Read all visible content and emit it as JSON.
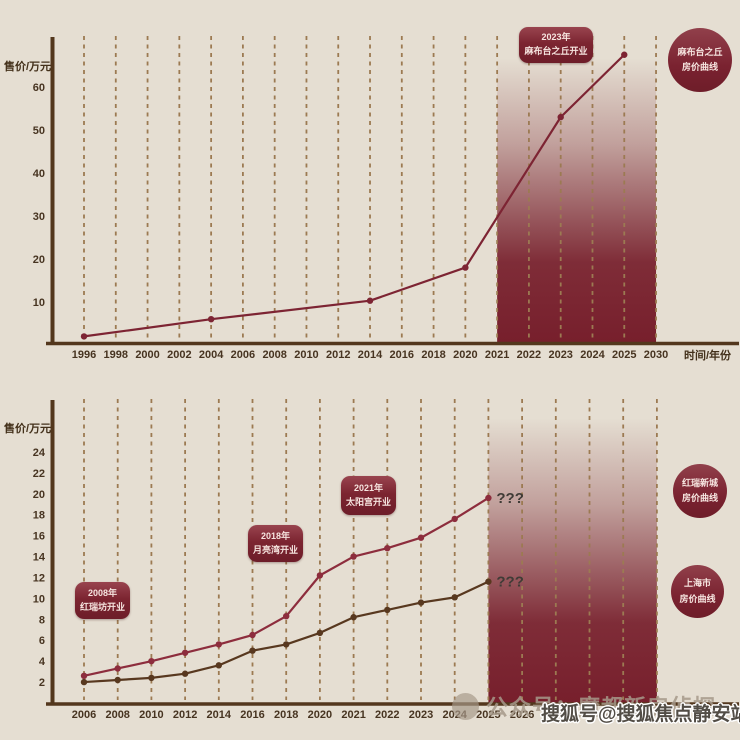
{
  "background": "#e5ded2",
  "chart_data": [
    {
      "type": "line",
      "title": "",
      "ylabel": "售价/万元",
      "xlabel": "时间/年份",
      "x_ticks": [
        "1996",
        "1998",
        "2000",
        "2002",
        "2004",
        "2006",
        "2008",
        "2010",
        "2012",
        "2014",
        "2016",
        "2018",
        "2020",
        "2021",
        "2022",
        "2023",
        "2024",
        "2025",
        "2030"
      ],
      "y_ticks": [
        10,
        20,
        30,
        40,
        50,
        60
      ],
      "ylim": [
        0,
        70
      ],
      "grid": "vertical-dashed",
      "legend_position": "right",
      "highlight_region": {
        "from": "2021",
        "to": "2030"
      },
      "series": [
        {
          "name": "麻布台之丘房价曲线",
          "color": "#7d2433",
          "points": [
            [
              "1996",
              2
            ],
            [
              "2004",
              6
            ],
            [
              "2014",
              10.3
            ],
            [
              "2020",
              18
            ],
            [
              "2023",
              53
            ],
            [
              "2025",
              67.5
            ]
          ]
        }
      ],
      "badge": {
        "line1": "2023年",
        "line2": "麻布台之丘开业"
      },
      "legend": {
        "line1": "麻布台之丘",
        "line2": "房价曲线"
      }
    },
    {
      "type": "line",
      "title": "",
      "ylabel": "售价/万元",
      "xlabel": "",
      "x_ticks": [
        "2006",
        "2008",
        "2010",
        "2012",
        "2014",
        "2016",
        "2018",
        "2020",
        "2021",
        "2022",
        "2023",
        "2024",
        "2025",
        "2026"
      ],
      "extra_gridlines": 4,
      "y_ticks": [
        2,
        4,
        6,
        8,
        10,
        12,
        14,
        16,
        18,
        20,
        22,
        24
      ],
      "ylim": [
        0,
        25
      ],
      "grid": "vertical-dashed",
      "legend_position": "right",
      "highlight_region": {
        "from": "2025",
        "to": "end"
      },
      "series": [
        {
          "name": "红瑞新城房价曲线",
          "color": "#8d2d3d",
          "future_label": "???",
          "points": [
            [
              "2006",
              2.6
            ],
            [
              "2008",
              3.3
            ],
            [
              "2010",
              4
            ],
            [
              "2012",
              4.8
            ],
            [
              "2014",
              5.6
            ],
            [
              "2016",
              6.5
            ],
            [
              "2018",
              8.3
            ],
            [
              "2020",
              12.2
            ],
            [
              "2021",
              14
            ],
            [
              "2022",
              14.8
            ],
            [
              "2023",
              15.8
            ],
            [
              "2024",
              17.6
            ],
            [
              "2025",
              19.6
            ]
          ]
        },
        {
          "name": "上海市房价曲线",
          "color": "#58381f",
          "future_label": "???",
          "points": [
            [
              "2006",
              2
            ],
            [
              "2008",
              2.2
            ],
            [
              "2010",
              2.4
            ],
            [
              "2012",
              2.8
            ],
            [
              "2014",
              3.6
            ],
            [
              "2016",
              5
            ],
            [
              "2018",
              5.6
            ],
            [
              "2020",
              6.7
            ],
            [
              "2021",
              8.2
            ],
            [
              "2022",
              8.9
            ],
            [
              "2023",
              9.6
            ],
            [
              "2024",
              10.1
            ],
            [
              "2025",
              11.6
            ]
          ]
        }
      ],
      "badges": [
        {
          "line1": "2008年",
          "line2": "红瑞坊开业"
        },
        {
          "line1": "2018年",
          "line2": "月亮湾开业"
        },
        {
          "line1": "2021年",
          "line2": "太阳宫开业"
        }
      ],
      "legends": [
        {
          "line1": "红瑞新城",
          "line2": "房价曲线"
        },
        {
          "line1": "上海市",
          "line2": "房价曲线"
        }
      ]
    }
  ],
  "watermarks": {
    "wechat": "公众号：魔都新房侦探",
    "sohu": "搜狐号@搜狐焦点静安站"
  },
  "colors": {
    "background": "#e5ded2",
    "axis": "#53371d",
    "gridline": "#9c7a52",
    "tick_label": "#473421",
    "highlight_maroon": "#771f2c",
    "badge_fill": "#7c2531",
    "badge_text": "#f6e4df"
  }
}
